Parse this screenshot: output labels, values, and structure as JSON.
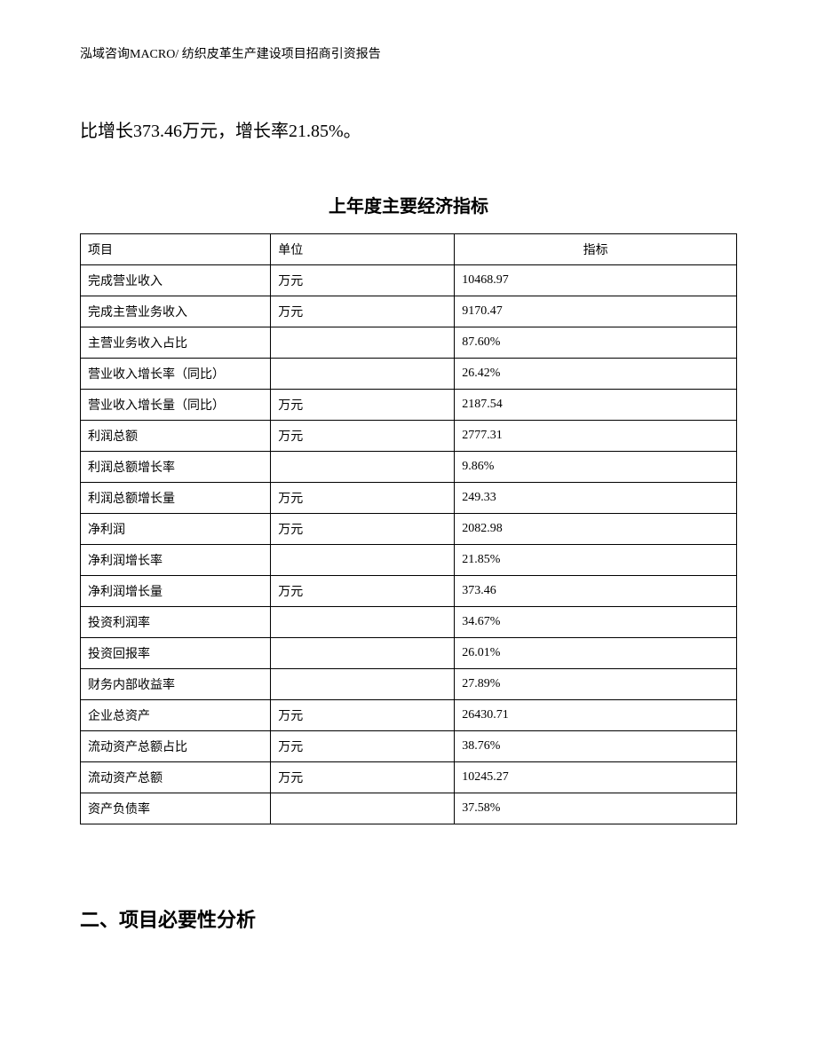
{
  "header": "泓域咨询MACRO/ 纺织皮革生产建设项目招商引资报告",
  "intro": "比增长373.46万元，增长率21.85%。",
  "table": {
    "title": "上年度主要经济指标",
    "columns": [
      "项目",
      "单位",
      "指标"
    ],
    "rows": [
      [
        "完成营业收入",
        "万元",
        "10468.97"
      ],
      [
        "完成主营业务收入",
        "万元",
        "9170.47"
      ],
      [
        "主营业务收入占比",
        "",
        "87.60%"
      ],
      [
        "营业收入增长率（同比）",
        "",
        "26.42%"
      ],
      [
        "营业收入增长量（同比）",
        "万元",
        "2187.54"
      ],
      [
        "利润总额",
        "万元",
        "2777.31"
      ],
      [
        "利润总额增长率",
        "",
        "9.86%"
      ],
      [
        "利润总额增长量",
        "万元",
        "249.33"
      ],
      [
        "净利润",
        "万元",
        "2082.98"
      ],
      [
        "净利润增长率",
        "",
        "21.85%"
      ],
      [
        "净利润增长量",
        "万元",
        "373.46"
      ],
      [
        "投资利润率",
        "",
        "34.67%"
      ],
      [
        "投资回报率",
        "",
        "26.01%"
      ],
      [
        "财务内部收益率",
        "",
        "27.89%"
      ],
      [
        "企业总资产",
        "万元",
        "26430.71"
      ],
      [
        "流动资产总额占比",
        "万元",
        "38.76%"
      ],
      [
        "流动资产总额",
        "万元",
        "10245.27"
      ],
      [
        "资产负债率",
        "",
        "37.58%"
      ]
    ]
  },
  "section_heading": "二、项目必要性分析"
}
